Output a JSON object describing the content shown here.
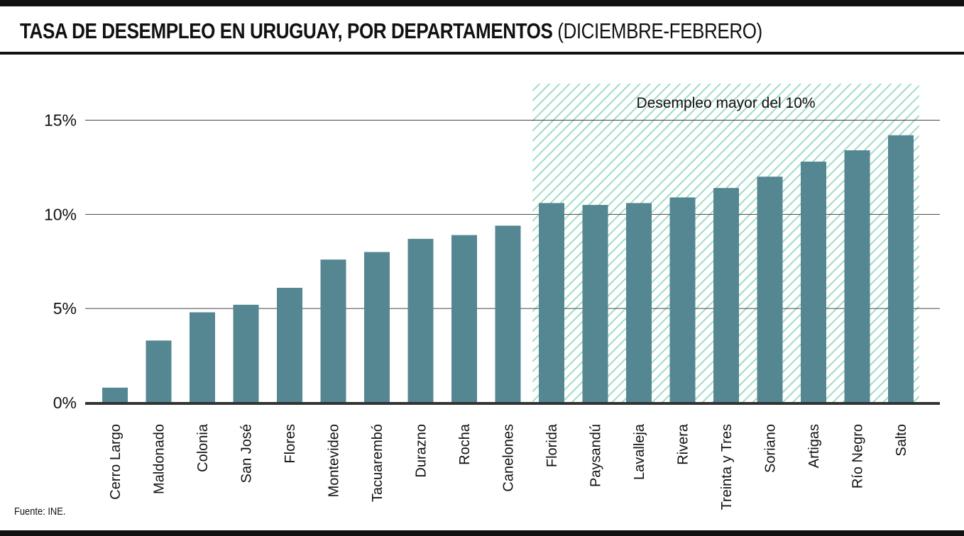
{
  "title": "TASA DE DESEMPLEO EN URUGUAY, POR DEPARTAMENTOS",
  "subtitle": "(DICIEMBRE-FEBRERO)",
  "source": "Fuente: INE.",
  "colors": {
    "bar": "#548792",
    "highlight_stripe": "#9fdcc6",
    "text": "#111111",
    "axis": "#333333"
  },
  "chart_data": {
    "type": "bar",
    "categories": [
      "Cerro Largo",
      "Maldonado",
      "Colonia",
      "San José",
      "Flores",
      "Montevideo",
      "Tacuarembó",
      "Durazno",
      "Rocha",
      "Canelones",
      "Florida",
      "Paysandú",
      "Lavalleja",
      "Rivera",
      "Treinta y Tres",
      "Soriano",
      "Artigas",
      "Río Negro",
      "Salto"
    ],
    "values": [
      0.8,
      3.3,
      4.8,
      5.2,
      6.1,
      7.6,
      8.0,
      8.7,
      8.9,
      9.4,
      10.6,
      10.5,
      10.6,
      10.9,
      11.4,
      12.0,
      12.8,
      13.4,
      14.2
    ],
    "ylim": [
      0,
      17
    ],
    "yticks": [
      0,
      5,
      10,
      15
    ],
    "ytick_labels": [
      "0%",
      "5%",
      "10%",
      "15%"
    ],
    "grid": true,
    "xlabel": "",
    "ylabel": "",
    "highlight": {
      "label": "Desempleo mayor del 10%",
      "from_category": "Florida",
      "to_category": "Salto",
      "pattern": "diagonal-hatch"
    }
  }
}
